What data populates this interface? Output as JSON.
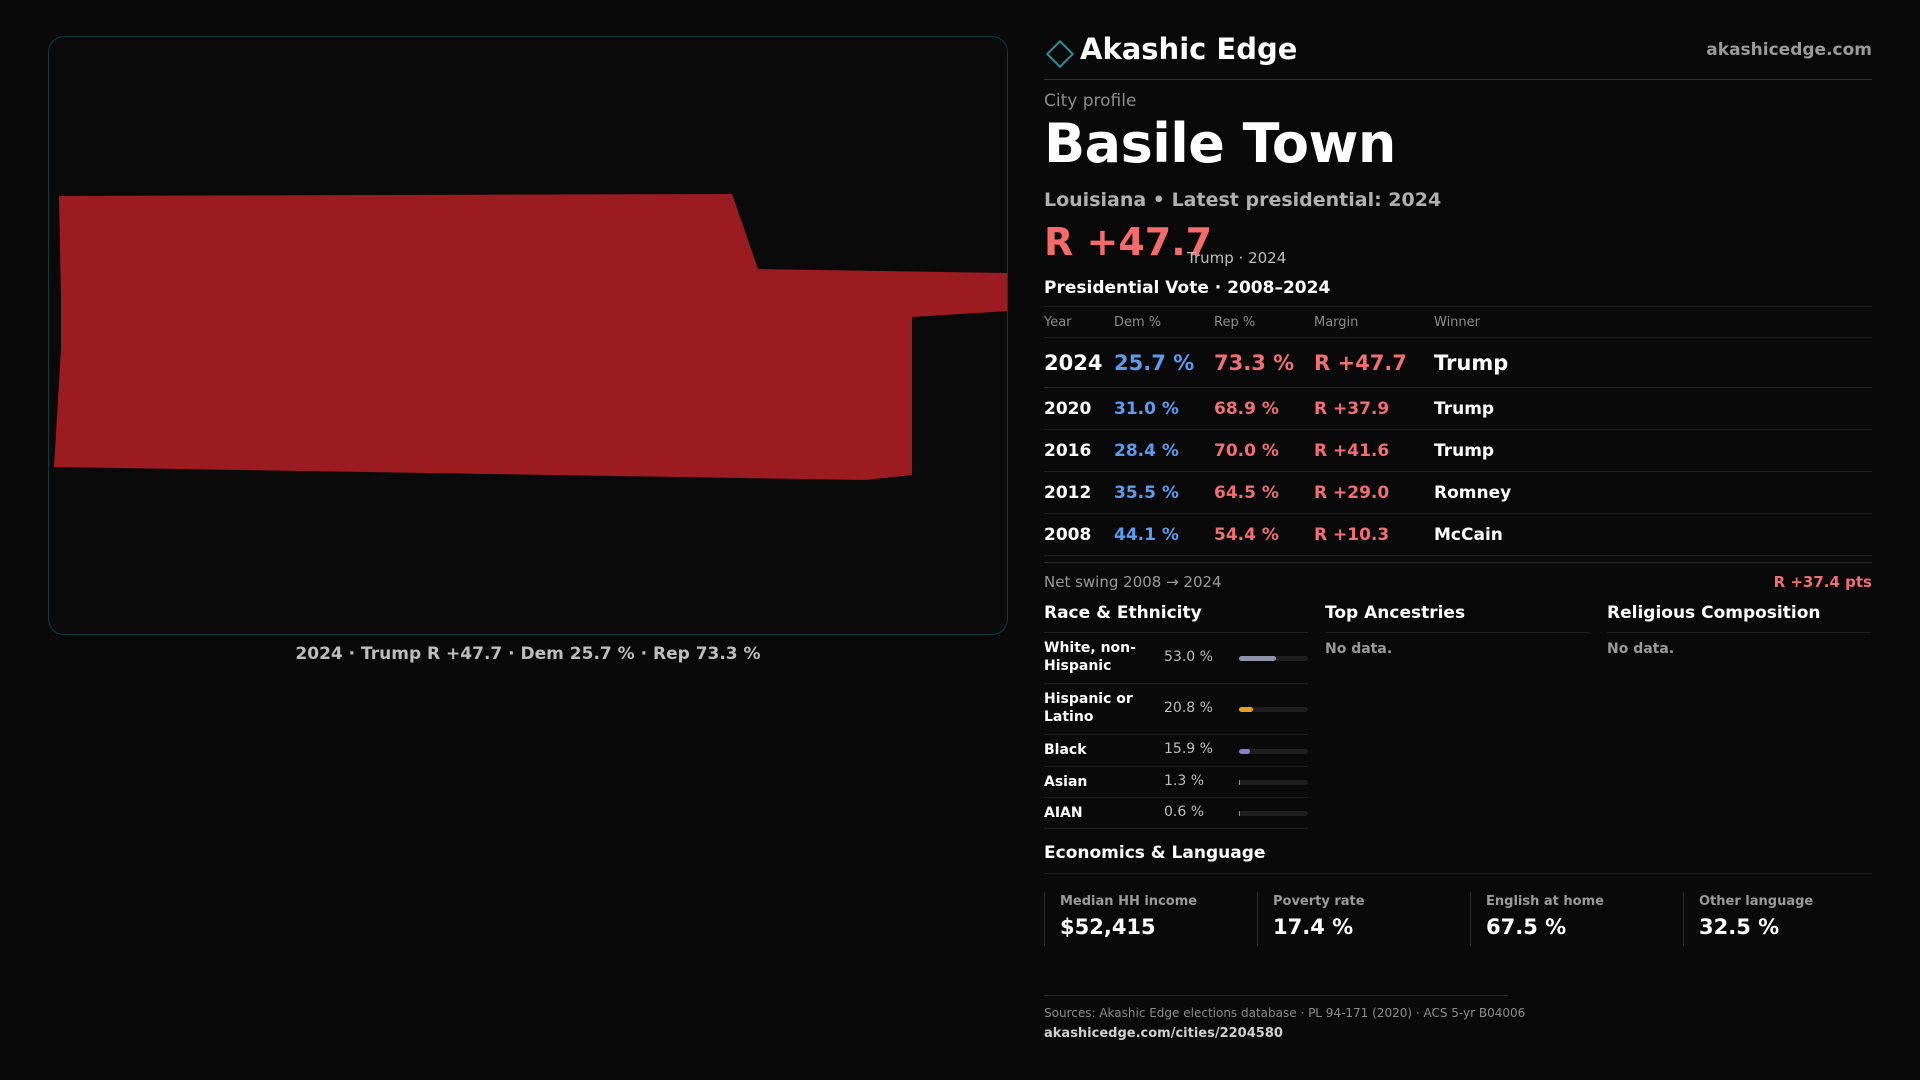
{
  "map": {
    "caption": "2024 · Trump R +47.7 · Dem 25.7 % · Rep 73.3 %",
    "fill_color": "#9b1c20"
  },
  "brand": {
    "name": "Akashic Edge",
    "url": "akashicedge.com",
    "logo_icon": "diamond-icon"
  },
  "profile": {
    "eyebrow": "City profile",
    "city": "Basile Town",
    "subtitle": "Louisiana • Latest presidential: 2024",
    "headline_margin": "R +47.7",
    "headline_note": "Trump · 2024"
  },
  "vote": {
    "title": "Presidential Vote · 2008–2024",
    "headers": {
      "year": "Year",
      "dem": "Dem %",
      "rep": "Rep %",
      "margin": "Margin",
      "winner": "Winner"
    },
    "rows": [
      {
        "year": "2024",
        "dem": "25.7 %",
        "rep": "73.3 %",
        "margin": "R +47.7",
        "winner": "Trump"
      },
      {
        "year": "2020",
        "dem": "31.0 %",
        "rep": "68.9 %",
        "margin": "R +37.9",
        "winner": "Trump"
      },
      {
        "year": "2016",
        "dem": "28.4 %",
        "rep": "70.0 %",
        "margin": "R +41.6",
        "winner": "Trump"
      },
      {
        "year": "2012",
        "dem": "35.5 %",
        "rep": "64.5 %",
        "margin": "R +29.0",
        "winner": "Romney"
      },
      {
        "year": "2008",
        "dem": "44.1 %",
        "rep": "54.4 %",
        "margin": "R +10.3",
        "winner": "McCain"
      }
    ],
    "swing_label": "Net swing 2008 → 2024",
    "swing_value": "R +37.4 pts"
  },
  "race": {
    "title": "Race & Ethnicity",
    "rows": [
      {
        "label": "White, non-Hispanic",
        "pct": "53.0 %",
        "value": 53.0,
        "color": "#8f93a6"
      },
      {
        "label": "Hispanic or Latino",
        "pct": "20.8 %",
        "value": 20.8,
        "color": "#e2a21c"
      },
      {
        "label": "Black",
        "pct": "15.9 %",
        "value": 15.9,
        "color": "#8c7bd6"
      },
      {
        "label": "Asian",
        "pct": "1.3 %",
        "value": 1.3,
        "color": "#3fbfb0"
      },
      {
        "label": "AIAN",
        "pct": "0.6 %",
        "value": 0.6,
        "color": "#e07a3a"
      }
    ]
  },
  "ancestries": {
    "title": "Top Ancestries",
    "empty": "No data."
  },
  "religion": {
    "title": "Religious Composition",
    "empty": "No data."
  },
  "economics": {
    "title": "Economics & Language",
    "cells": [
      {
        "label": "Median HH income",
        "value": "$52,415"
      },
      {
        "label": "Poverty rate",
        "value": "17.4 %"
      },
      {
        "label": "English at home",
        "value": "67.5 %"
      },
      {
        "label": "Other language",
        "value": "32.5 %"
      }
    ]
  },
  "footer": {
    "sources": "Sources: Akashic Edge elections database · PL 94-171 (2020) · ACS 5-yr B04006",
    "url": "akashicedge.com/cities/2204580"
  }
}
